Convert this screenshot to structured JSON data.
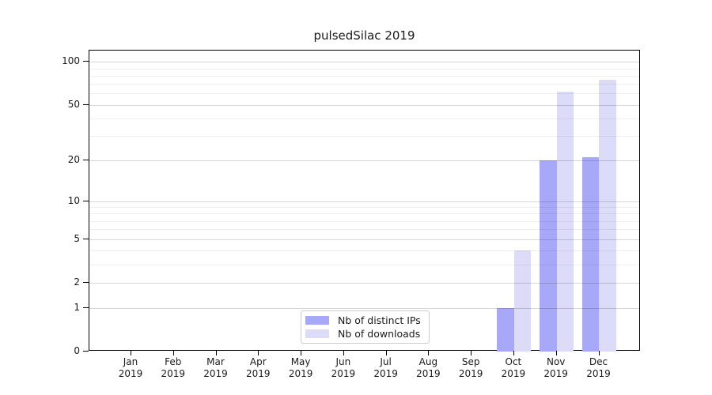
{
  "chart_data": {
    "type": "bar",
    "title": "pulsedSilac 2019",
    "months": [
      "Jan",
      "Feb",
      "Mar",
      "Apr",
      "May",
      "Jun",
      "Jul",
      "Aug",
      "Sep",
      "Oct",
      "Nov",
      "Dec"
    ],
    "year_label": "2019",
    "yscale": "log1p",
    "ylim": [
      0,
      120
    ],
    "yticks": [
      0,
      1,
      2,
      5,
      10,
      20,
      50,
      100
    ],
    "minor_yticks": [
      3,
      4,
      6,
      7,
      8,
      9,
      30,
      40,
      60,
      70,
      80,
      90
    ],
    "grid": true,
    "legend_position": "lower center",
    "series": [
      {
        "name": "Nb of distinct IPs",
        "color": "#a8a8f8",
        "values": [
          0,
          0,
          0,
          0,
          0,
          0,
          0,
          0,
          0,
          1,
          20,
          21
        ]
      },
      {
        "name": "Nb of downloads",
        "color": "#dcdcf8",
        "values": [
          0,
          0,
          0,
          0,
          0,
          0,
          0,
          0,
          0,
          4,
          62,
          75
        ]
      }
    ],
    "colors": {
      "axis": "#000000",
      "text": "#1a1a1a",
      "grid_major": "#d6d6d6",
      "grid_minor": "#efefef",
      "background": "#ffffff",
      "legend_border": "#cccccc"
    }
  }
}
